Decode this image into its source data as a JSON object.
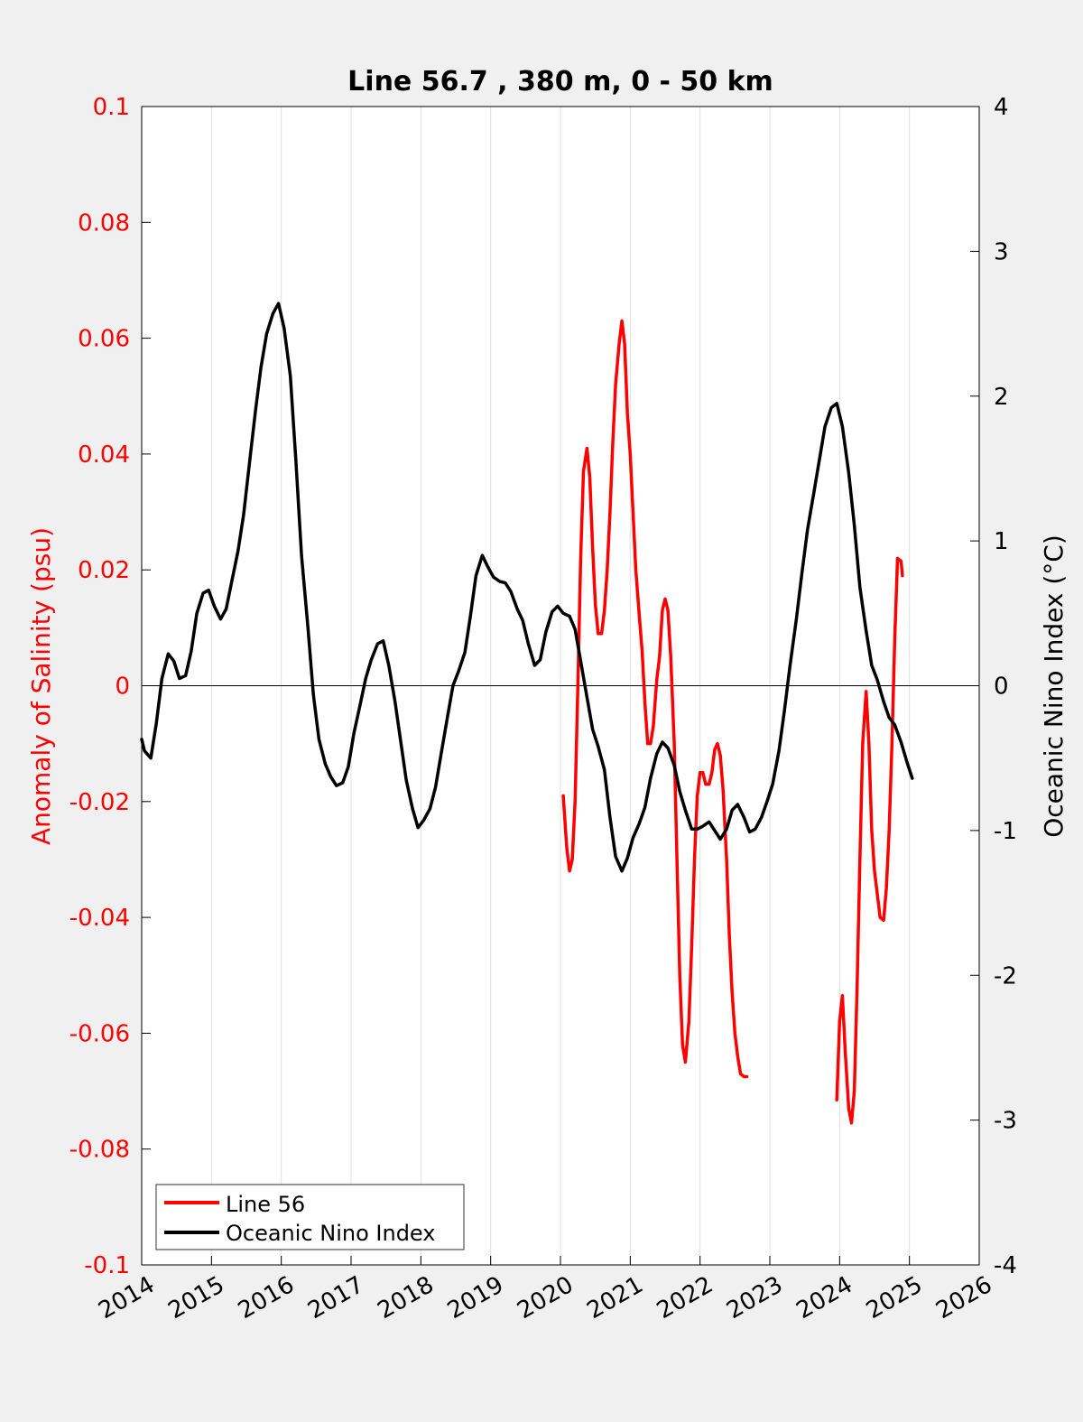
{
  "chart_data": {
    "type": "line",
    "title": "Line 56.7 , 380 m, 0 - 50 km",
    "xlabel": "",
    "ylabel_left": "Anomaly of Salinity (psu)",
    "ylabel_right": "Oceanic Nino Index (°C)",
    "xlim": [
      2014,
      2026
    ],
    "ylim_left": [
      -0.1,
      0.1
    ],
    "ylim_right": [
      -4,
      4
    ],
    "x_ticks": [
      "2014",
      "2015",
      "2016",
      "2017",
      "2018",
      "2019",
      "2020",
      "2021",
      "2022",
      "2023",
      "2024",
      "2025",
      "2026"
    ],
    "y_ticks_left": [
      "0.1",
      "0.08",
      "0.06",
      "0.04",
      "0.02",
      "0",
      "-0.02",
      "-0.04",
      "-0.06",
      "-0.08",
      "-0.1"
    ],
    "y_ticks_right": [
      "4",
      "3",
      "2",
      "1",
      "0",
      "-1",
      "-2",
      "-3",
      "-4"
    ],
    "grid": "vertical",
    "zero_line": true,
    "legend_position": "bottom-left",
    "colors": {
      "salinity": "#ff0000",
      "oni": "#000000",
      "background": "#f0f0f0",
      "axes": "#ffffff",
      "grid": "#e0e0e0"
    },
    "series": [
      {
        "name": "Line 56",
        "axis": "left",
        "segments": [
          [
            [
              2020.04,
              -0.019
            ],
            [
              2020.09,
              -0.028
            ],
            [
              2020.13,
              -0.032
            ],
            [
              2020.17,
              -0.03
            ],
            [
              2020.21,
              -0.02
            ],
            [
              2020.25,
              0.0
            ],
            [
              2020.29,
              0.022
            ],
            [
              2020.33,
              0.037
            ],
            [
              2020.38,
              0.041
            ],
            [
              2020.42,
              0.036
            ],
            [
              2020.46,
              0.024
            ],
            [
              2020.5,
              0.014
            ],
            [
              2020.54,
              0.009
            ],
            [
              2020.59,
              0.009
            ],
            [
              2020.63,
              0.013
            ],
            [
              2020.67,
              0.02
            ],
            [
              2020.71,
              0.03
            ],
            [
              2020.75,
              0.042
            ],
            [
              2020.79,
              0.052
            ],
            [
              2020.84,
              0.059
            ],
            [
              2020.88,
              0.063
            ],
            [
              2020.92,
              0.059
            ],
            [
              2020.96,
              0.047
            ],
            [
              2021.0,
              0.04
            ],
            [
              2021.04,
              0.03
            ],
            [
              2021.08,
              0.02
            ],
            [
              2021.13,
              0.012
            ],
            [
              2021.17,
              0.006
            ],
            [
              2021.21,
              -0.003
            ],
            [
              2021.25,
              -0.01
            ],
            [
              2021.29,
              -0.01
            ],
            [
              2021.33,
              -0.007
            ],
            [
              2021.38,
              0.001
            ],
            [
              2021.42,
              0.005
            ],
            [
              2021.46,
              0.013
            ],
            [
              2021.5,
              0.015
            ],
            [
              2021.54,
              0.013
            ],
            [
              2021.58,
              0.005
            ],
            [
              2021.63,
              -0.01
            ],
            [
              2021.67,
              -0.03
            ],
            [
              2021.71,
              -0.05
            ],
            [
              2021.75,
              -0.062
            ],
            [
              2021.79,
              -0.065
            ],
            [
              2021.84,
              -0.058
            ],
            [
              2021.88,
              -0.045
            ],
            [
              2021.92,
              -0.03
            ],
            [
              2021.96,
              -0.019
            ],
            [
              2022.0,
              -0.015
            ],
            [
              2022.04,
              -0.015
            ],
            [
              2022.08,
              -0.017
            ],
            [
              2022.13,
              -0.017
            ],
            [
              2022.17,
              -0.015
            ],
            [
              2022.21,
              -0.011
            ],
            [
              2022.25,
              -0.01
            ],
            [
              2022.29,
              -0.012
            ],
            [
              2022.33,
              -0.018
            ],
            [
              2022.38,
              -0.03
            ],
            [
              2022.42,
              -0.043
            ],
            [
              2022.46,
              -0.053
            ],
            [
              2022.5,
              -0.06
            ],
            [
              2022.54,
              -0.064
            ],
            [
              2022.58,
              -0.067
            ],
            [
              2022.63,
              -0.0675
            ],
            [
              2022.67,
              -0.0675
            ]
          ],
          [
            [
              2023.96,
              -0.0715
            ],
            [
              2024.0,
              -0.058
            ],
            [
              2024.04,
              -0.0535
            ],
            [
              2024.08,
              -0.063
            ],
            [
              2024.13,
              -0.073
            ],
            [
              2024.17,
              -0.0755
            ],
            [
              2024.21,
              -0.07
            ],
            [
              2024.25,
              -0.052
            ],
            [
              2024.29,
              -0.03
            ],
            [
              2024.33,
              -0.01
            ],
            [
              2024.38,
              -0.001
            ],
            [
              2024.42,
              -0.01
            ],
            [
              2024.46,
              -0.025
            ],
            [
              2024.5,
              -0.032
            ],
            [
              2024.54,
              -0.036
            ],
            [
              2024.58,
              -0.04
            ],
            [
              2024.63,
              -0.0405
            ],
            [
              2024.67,
              -0.035
            ],
            [
              2024.71,
              -0.025
            ],
            [
              2024.75,
              -0.01
            ],
            [
              2024.79,
              0.008
            ],
            [
              2024.83,
              0.022
            ],
            [
              2024.88,
              0.0215
            ],
            [
              2024.9,
              0.019
            ]
          ]
        ]
      },
      {
        "name": "Oceanic Nino Index",
        "axis": "right",
        "segments": [
          [
            [
              2014.0,
              -0.37
            ],
            [
              2014.04,
              -0.45
            ],
            [
              2014.13,
              -0.5
            ],
            [
              2014.21,
              -0.26
            ],
            [
              2014.29,
              0.05
            ],
            [
              2014.38,
              0.22
            ],
            [
              2014.46,
              0.17
            ],
            [
              2014.54,
              0.05
            ],
            [
              2014.63,
              0.07
            ],
            [
              2014.71,
              0.24
            ],
            [
              2014.79,
              0.5
            ],
            [
              2014.88,
              0.64
            ],
            [
              2014.96,
              0.66
            ],
            [
              2015.04,
              0.55
            ],
            [
              2015.13,
              0.46
            ],
            [
              2015.21,
              0.53
            ],
            [
              2015.29,
              0.72
            ],
            [
              2015.38,
              0.93
            ],
            [
              2015.46,
              1.18
            ],
            [
              2015.54,
              1.52
            ],
            [
              2015.63,
              1.9
            ],
            [
              2015.71,
              2.2
            ],
            [
              2015.79,
              2.43
            ],
            [
              2015.88,
              2.57
            ],
            [
              2015.96,
              2.64
            ],
            [
              2016.04,
              2.47
            ],
            [
              2016.13,
              2.14
            ],
            [
              2016.21,
              1.55
            ],
            [
              2016.29,
              0.9
            ],
            [
              2016.38,
              0.41
            ],
            [
              2016.46,
              -0.06
            ],
            [
              2016.54,
              -0.37
            ],
            [
              2016.63,
              -0.54
            ],
            [
              2016.71,
              -0.63
            ],
            [
              2016.79,
              -0.69
            ],
            [
              2016.88,
              -0.67
            ],
            [
              2016.96,
              -0.56
            ],
            [
              2017.04,
              -0.33
            ],
            [
              2017.13,
              -0.13
            ],
            [
              2017.21,
              0.05
            ],
            [
              2017.29,
              0.18
            ],
            [
              2017.38,
              0.29
            ],
            [
              2017.46,
              0.31
            ],
            [
              2017.54,
              0.14
            ],
            [
              2017.63,
              -0.11
            ],
            [
              2017.71,
              -0.38
            ],
            [
              2017.79,
              -0.65
            ],
            [
              2017.88,
              -0.85
            ],
            [
              2017.96,
              -0.98
            ],
            [
              2018.04,
              -0.93
            ],
            [
              2018.13,
              -0.85
            ],
            [
              2018.21,
              -0.7
            ],
            [
              2018.29,
              -0.47
            ],
            [
              2018.38,
              -0.22
            ],
            [
              2018.46,
              0.0
            ],
            [
              2018.54,
              0.1
            ],
            [
              2018.63,
              0.23
            ],
            [
              2018.71,
              0.48
            ],
            [
              2018.79,
              0.76
            ],
            [
              2018.88,
              0.9
            ],
            [
              2018.96,
              0.82
            ],
            [
              2019.04,
              0.75
            ],
            [
              2019.13,
              0.72
            ],
            [
              2019.21,
              0.71
            ],
            [
              2019.29,
              0.65
            ],
            [
              2019.38,
              0.53
            ],
            [
              2019.46,
              0.45
            ],
            [
              2019.54,
              0.29
            ],
            [
              2019.63,
              0.14
            ],
            [
              2019.71,
              0.18
            ],
            [
              2019.79,
              0.37
            ],
            [
              2019.88,
              0.51
            ],
            [
              2019.96,
              0.55
            ],
            [
              2020.04,
              0.5
            ],
            [
              2020.13,
              0.48
            ],
            [
              2020.21,
              0.39
            ],
            [
              2020.29,
              0.17
            ],
            [
              2020.38,
              -0.08
            ],
            [
              2020.46,
              -0.3
            ],
            [
              2020.54,
              -0.42
            ],
            [
              2020.63,
              -0.58
            ],
            [
              2020.71,
              -0.91
            ],
            [
              2020.79,
              -1.18
            ],
            [
              2020.88,
              -1.28
            ],
            [
              2020.96,
              -1.19
            ],
            [
              2021.04,
              -1.05
            ],
            [
              2021.13,
              -0.95
            ],
            [
              2021.21,
              -0.84
            ],
            [
              2021.29,
              -0.64
            ],
            [
              2021.38,
              -0.47
            ],
            [
              2021.46,
              -0.39
            ],
            [
              2021.54,
              -0.43
            ],
            [
              2021.63,
              -0.55
            ],
            [
              2021.71,
              -0.73
            ],
            [
              2021.79,
              -0.86
            ],
            [
              2021.88,
              -0.99
            ],
            [
              2021.96,
              -0.99
            ],
            [
              2022.04,
              -0.97
            ],
            [
              2022.13,
              -0.94
            ],
            [
              2022.21,
              -1.0
            ],
            [
              2022.29,
              -1.06
            ],
            [
              2022.38,
              -0.99
            ],
            [
              2022.46,
              -0.86
            ],
            [
              2022.54,
              -0.82
            ],
            [
              2022.63,
              -0.91
            ],
            [
              2022.71,
              -1.01
            ],
            [
              2022.79,
              -0.99
            ],
            [
              2022.88,
              -0.91
            ],
            [
              2022.96,
              -0.8
            ],
            [
              2023.04,
              -0.68
            ],
            [
              2023.13,
              -0.45
            ],
            [
              2023.21,
              -0.17
            ],
            [
              2023.29,
              0.14
            ],
            [
              2023.38,
              0.46
            ],
            [
              2023.46,
              0.78
            ],
            [
              2023.54,
              1.08
            ],
            [
              2023.63,
              1.33
            ],
            [
              2023.71,
              1.56
            ],
            [
              2023.79,
              1.79
            ],
            [
              2023.88,
              1.92
            ],
            [
              2023.96,
              1.95
            ],
            [
              2024.04,
              1.79
            ],
            [
              2024.13,
              1.47
            ],
            [
              2024.21,
              1.11
            ],
            [
              2024.29,
              0.68
            ],
            [
              2024.38,
              0.38
            ],
            [
              2024.46,
              0.14
            ],
            [
              2024.54,
              0.04
            ],
            [
              2024.63,
              -0.11
            ],
            [
              2024.71,
              -0.22
            ],
            [
              2024.79,
              -0.27
            ],
            [
              2024.88,
              -0.39
            ],
            [
              2024.96,
              -0.52
            ],
            [
              2025.04,
              -0.64
            ]
          ]
        ]
      }
    ]
  }
}
